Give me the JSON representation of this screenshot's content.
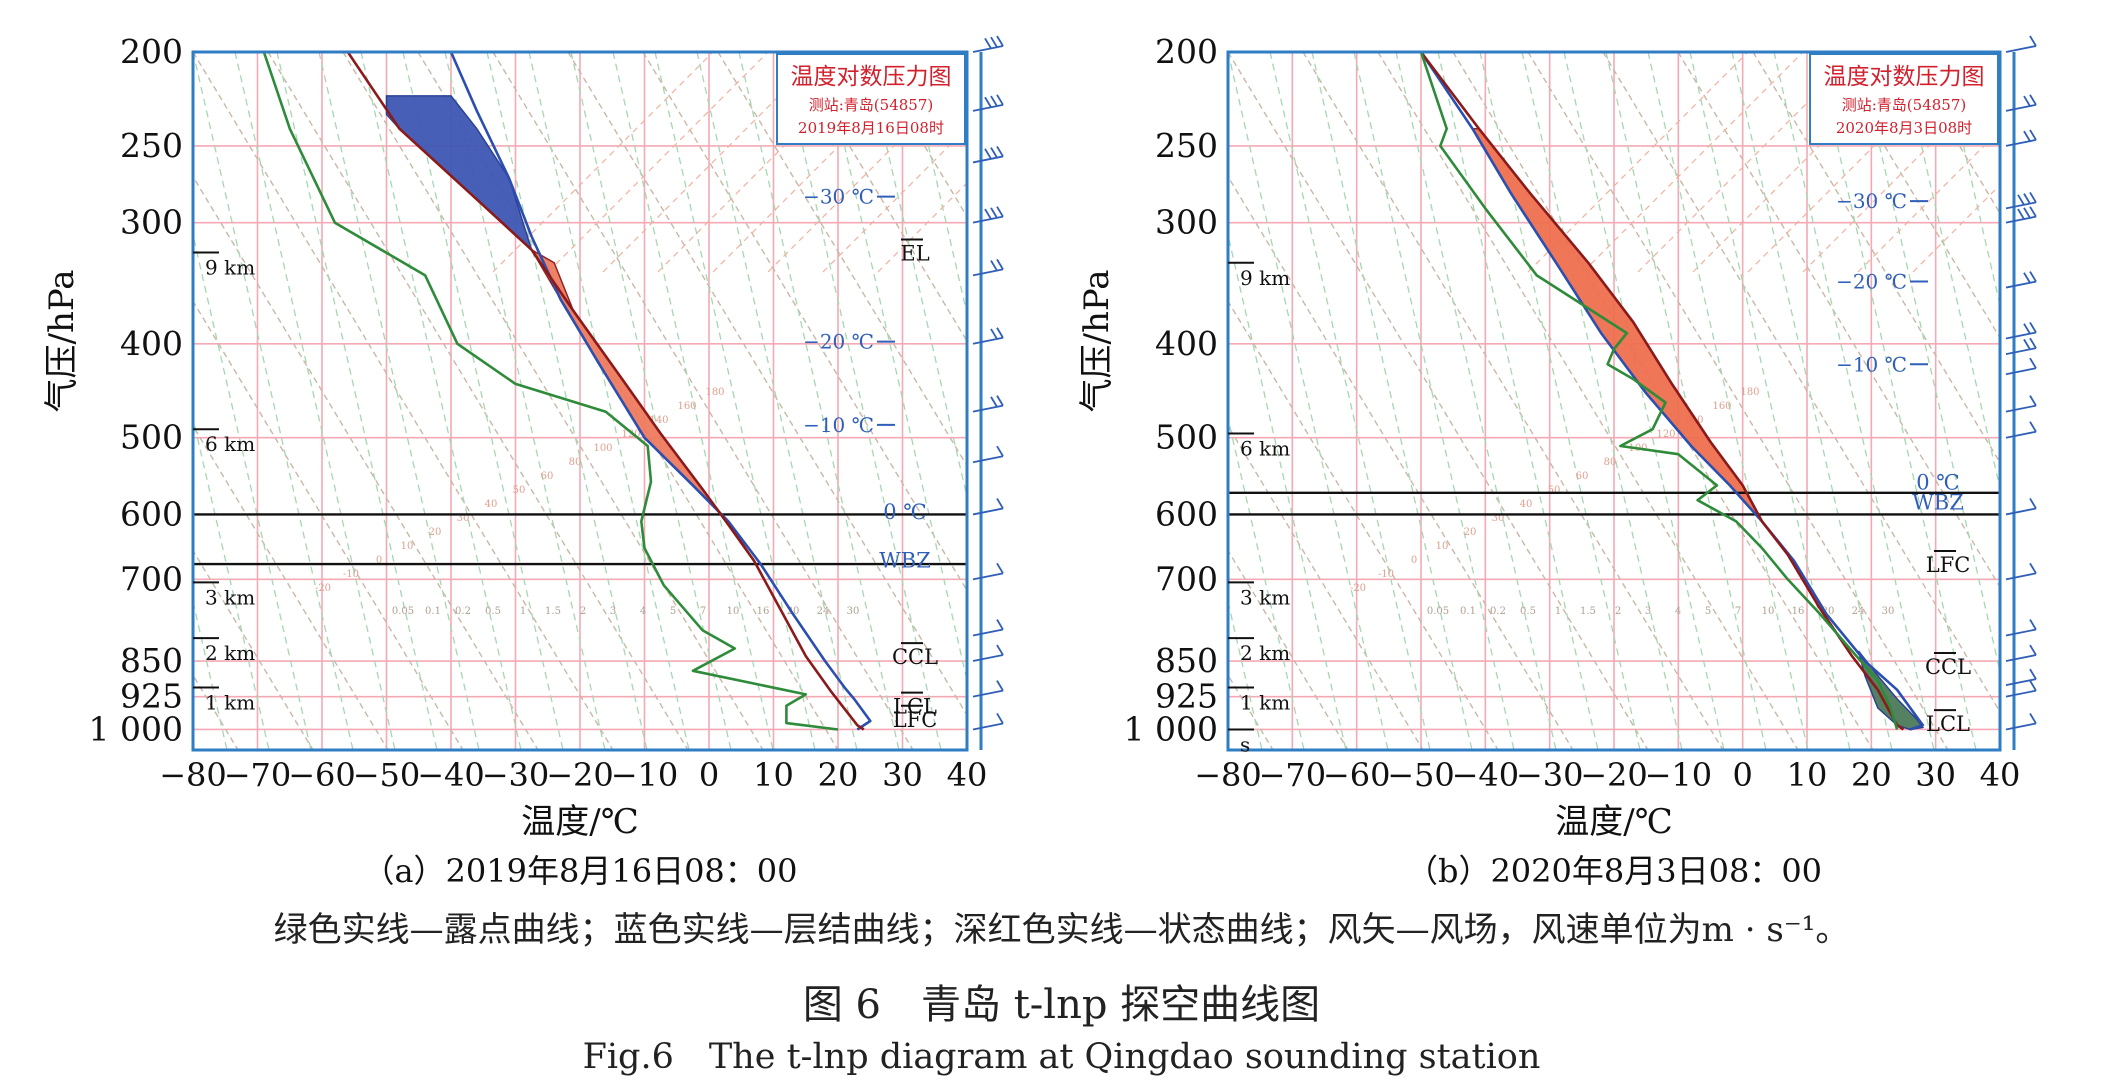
{
  "chart_data": [
    {
      "type": "line",
      "panel_label": "（a）2019年8月16日08：00",
      "inset_title": "温度对数压力图",
      "inset_station": "测站:青岛(54857)",
      "inset_time": "2019年8月16日08时",
      "xlabel": "温度/℃",
      "ylabel": "气压/hPa",
      "xlim": [
        -80,
        40
      ],
      "ylim": [
        1050,
        200
      ],
      "y_scale": "log",
      "x_ticks": [
        -80,
        -70,
        -60,
        -50,
        -40,
        -30,
        -20,
        -10,
        0,
        10,
        20,
        30,
        40
      ],
      "x_tick_labels": [
        "−80",
        "−70",
        "−60",
        "−50",
        "−40",
        "−30",
        "−20",
        "−10",
        "0",
        "10",
        "20",
        "30",
        "40"
      ],
      "y_ticks": [
        200,
        250,
        300,
        400,
        500,
        600,
        700,
        850,
        925,
        1000
      ],
      "y_tick_labels": [
        "200",
        "250",
        "300",
        "400",
        "500",
        "600",
        "700",
        "850",
        "925",
        "1 000"
      ],
      "height_marks": [
        {
          "p": 322,
          "label": "9 km"
        },
        {
          "p": 490,
          "label": "6 km"
        },
        {
          "p": 705,
          "label": "3 km"
        },
        {
          "p": 805,
          "label": "2 km"
        },
        {
          "p": 905,
          "label": "1 km"
        }
      ],
      "isotherm_labels": [
        {
          "p": 282,
          "label": "−30 ℃"
        },
        {
          "p": 398,
          "label": "−20 ℃"
        },
        {
          "p": 485,
          "label": "−10 ℃"
        }
      ],
      "level_labels": [
        {
          "p": 322,
          "label": "EL",
          "overline": true
        },
        {
          "p": 595,
          "label": "0 ℃",
          "overline": false
        },
        {
          "p": 668,
          "label": "WBZ",
          "overline": false
        },
        {
          "p": 840,
          "label": "CCL",
          "overline": true
        },
        {
          "p": 945,
          "label": "LCL",
          "overline": true
        },
        {
          "p": 975,
          "label": "LFC",
          "overline": true
        }
      ],
      "horizontal_lines": [
        600,
        675
      ],
      "series": [
        {
          "name": "层结曲线",
          "color": "#2b4fb0",
          "points": [
            [
              -40,
              200
            ],
            [
              -36,
              230
            ],
            [
              -31,
              270
            ],
            [
              -27.5,
              310
            ],
            [
              -23,
              360
            ],
            [
              -17,
              420
            ],
            [
              -10,
              500
            ],
            [
              -2.5,
              560
            ],
            [
              3,
              610
            ],
            [
              8,
              675
            ],
            [
              13,
              760
            ],
            [
              18,
              850
            ],
            [
              21,
              905
            ],
            [
              22.5,
              930
            ],
            [
              25,
              980
            ],
            [
              23,
              1000
            ]
          ]
        },
        {
          "name": "状态曲线",
          "color": "#8b1a1a",
          "points": [
            [
              -56,
              200
            ],
            [
              -48,
              240
            ],
            [
              -37,
              280
            ],
            [
              -27.5,
              320
            ],
            [
              -21,
              370
            ],
            [
              -14,
              430
            ],
            [
              -7.5,
              495
            ],
            [
              -1,
              565
            ],
            [
              3,
              615
            ],
            [
              7,
              670
            ],
            [
              11,
              750
            ],
            [
              15,
              840
            ],
            [
              19,
              915
            ],
            [
              23,
              990
            ],
            [
              24,
              1000
            ]
          ]
        },
        {
          "name": "露点曲线",
          "color": "#2e8b3a",
          "points": [
            [
              -69,
              200
            ],
            [
              -65,
              240
            ],
            [
              -58,
              300
            ],
            [
              -44,
              340
            ],
            [
              -39,
              400
            ],
            [
              -30,
              440
            ],
            [
              -16,
              470
            ],
            [
              -9.5,
              510
            ],
            [
              -9,
              555
            ],
            [
              -10.5,
              610
            ],
            [
              -10,
              650
            ],
            [
              -7,
              710
            ],
            [
              -1,
              790
            ],
            [
              4,
              825
            ],
            [
              -2.5,
              870
            ],
            [
              15,
              920
            ],
            [
              12,
              945
            ],
            [
              12,
              985
            ],
            [
              20,
              1000
            ]
          ]
        }
      ],
      "cape_area": [
        [
          -24,
          330
        ],
        [
          -21,
          370
        ],
        [
          -14,
          430
        ],
        [
          -7.5,
          495
        ],
        [
          -1,
          565
        ],
        [
          3,
          615
        ],
        [
          7,
          670
        ],
        [
          3,
          610
        ],
        [
          -2.5,
          560
        ],
        [
          -10,
          500
        ],
        [
          -17,
          420
        ],
        [
          -23,
          360
        ],
        [
          -27.5,
          320
        ]
      ],
      "cin_area": [
        [
          -50,
          222
        ],
        [
          -40,
          222
        ],
        [
          -36,
          240
        ],
        [
          -31,
          270
        ],
        [
          -27.5,
          320
        ],
        [
          -37,
          280
        ],
        [
          -48,
          240
        ],
        [
          -50,
          232
        ]
      ],
      "cape_color": "#ef7b5e",
      "cin_color": "#3f57b4",
      "dry_adiabat_labels": [
        "-20",
        "-10",
        "0",
        "10",
        "20",
        "30",
        "40",
        "50",
        "60",
        "80",
        "100",
        "120",
        "140",
        "160",
        "180"
      ],
      "mixing_ratio_labels": [
        "0.05",
        "0.1",
        "0.2",
        "0.5",
        "1",
        "1.5",
        "2",
        "3",
        "4",
        "5",
        "7",
        "10",
        "16",
        "20",
        "24",
        "30"
      ],
      "wind_barbs": [
        {
          "p": 200,
          "dir": 270,
          "spd": 22
        },
        {
          "p": 230,
          "dir": 275,
          "spd": 24
        },
        {
          "p": 260,
          "dir": 270,
          "spd": 26
        },
        {
          "p": 300,
          "dir": 270,
          "spd": 20
        },
        {
          "p": 340,
          "dir": 265,
          "spd": 18
        },
        {
          "p": 400,
          "dir": 260,
          "spd": 14
        },
        {
          "p": 470,
          "dir": 255,
          "spd": 12
        },
        {
          "p": 530,
          "dir": 250,
          "spd": 10
        },
        {
          "p": 600,
          "dir": 240,
          "spd": 8
        },
        {
          "p": 700,
          "dir": 235,
          "spd": 8
        },
        {
          "p": 800,
          "dir": 230,
          "spd": 6
        },
        {
          "p": 850,
          "dir": 225,
          "spd": 6
        },
        {
          "p": 925,
          "dir": 220,
          "spd": 4
        },
        {
          "p": 1000,
          "dir": 200,
          "spd": 4
        }
      ]
    },
    {
      "type": "line",
      "panel_label": "（b）2020年8月3日08：00",
      "inset_title": "温度对数压力图",
      "inset_station": "测站:青岛(54857)",
      "inset_time": "2020年8月3日08时",
      "xlabel": "温度/℃",
      "ylabel": "气压/hPa",
      "xlim": [
        -80,
        40
      ],
      "ylim": [
        1050,
        200
      ],
      "y_scale": "log",
      "x_ticks": [
        -80,
        -70,
        -60,
        -50,
        -40,
        -30,
        -20,
        -10,
        0,
        10,
        20,
        30,
        40
      ],
      "x_tick_labels": [
        "−80",
        "−70",
        "−60",
        "−50",
        "−40",
        "−30",
        "−20",
        "−10",
        "0",
        "10",
        "20",
        "30",
        "40"
      ],
      "y_ticks": [
        200,
        250,
        300,
        400,
        500,
        600,
        700,
        850,
        925,
        1000
      ],
      "y_tick_labels": [
        "200",
        "250",
        "300",
        "400",
        "500",
        "600",
        "700",
        "850",
        "925",
        "1 000"
      ],
      "height_marks": [
        {
          "p": 330,
          "label": "9 km"
        },
        {
          "p": 495,
          "label": "6 km"
        },
        {
          "p": 705,
          "label": "3 km"
        },
        {
          "p": 805,
          "label": "2 km"
        },
        {
          "p": 905,
          "label": "1 km"
        },
        {
          "p": 1000,
          "label": "s"
        }
      ],
      "isotherm_labels": [
        {
          "p": 285,
          "label": "−30 ℃"
        },
        {
          "p": 345,
          "label": "−20 ℃"
        },
        {
          "p": 420,
          "label": "−10 ℃"
        }
      ],
      "level_labels": [
        {
          "p": 555,
          "label": "0 ℃",
          "overline": false
        },
        {
          "p": 582,
          "label": "WBZ",
          "overline": false
        },
        {
          "p": 675,
          "label": "LFC",
          "overline": true
        },
        {
          "p": 860,
          "label": "CCL",
          "overline": true
        },
        {
          "p": 985,
          "label": "LCL",
          "overline": true
        }
      ],
      "horizontal_lines": [
        570,
        600
      ],
      "series": [
        {
          "name": "层结曲线",
          "color": "#2b4fb0",
          "points": [
            [
              -50,
              200
            ],
            [
              -42,
              240
            ],
            [
              -36,
              280
            ],
            [
              -29,
              330
            ],
            [
              -22,
              390
            ],
            [
              -15,
              450
            ],
            [
              -8,
              510
            ],
            [
              -2,
              560
            ],
            [
              3,
              610
            ],
            [
              8,
              670
            ],
            [
              13,
              760
            ],
            [
              19,
              850
            ],
            [
              24,
              910
            ],
            [
              28,
              990
            ],
            [
              26,
              1000
            ]
          ]
        },
        {
          "name": "状态曲线",
          "color": "#8b1a1a",
          "points": [
            [
              -50,
              200
            ],
            [
              -41,
              240
            ],
            [
              -33,
              280
            ],
            [
              -24,
              330
            ],
            [
              -17,
              380
            ],
            [
              -11,
              440
            ],
            [
              -5,
              505
            ],
            [
              0,
              560
            ],
            [
              3,
              610
            ],
            [
              7,
              660
            ],
            [
              12,
              750
            ],
            [
              17,
              840
            ],
            [
              21,
              910
            ],
            [
              24,
              990
            ],
            [
              25,
              1000
            ]
          ]
        },
        {
          "name": "露点曲线",
          "color": "#2e8b3a",
          "points": [
            [
              -50,
              200
            ],
            [
              -46,
              240
            ],
            [
              -47,
              250
            ],
            [
              -40,
              290
            ],
            [
              -32,
              340
            ],
            [
              -18,
              390
            ],
            [
              -20,
              405
            ],
            [
              -21,
              420
            ],
            [
              -17,
              435
            ],
            [
              -12,
              460
            ],
            [
              -14,
              490
            ],
            [
              -19,
              510
            ],
            [
              -10,
              520
            ],
            [
              -4,
              560
            ],
            [
              -7,
              580
            ],
            [
              -1,
              610
            ],
            [
              3,
              650
            ],
            [
              7,
              700
            ],
            [
              12,
              760
            ],
            [
              17,
              830
            ],
            [
              21,
              890
            ],
            [
              23,
              950
            ],
            [
              24,
              1000
            ]
          ]
        }
      ],
      "cape_area": [
        [
          -41,
          240
        ],
        [
          -33,
          280
        ],
        [
          -24,
          330
        ],
        [
          -17,
          380
        ],
        [
          -11,
          440
        ],
        [
          -5,
          505
        ],
        [
          0,
          560
        ],
        [
          3,
          610
        ],
        [
          -2,
          560
        ],
        [
          -8,
          510
        ],
        [
          -15,
          450
        ],
        [
          -22,
          390
        ],
        [
          -29,
          330
        ],
        [
          -36,
          280
        ],
        [
          -42,
          240
        ]
      ],
      "cin_area": [
        [
          18,
          830
        ],
        [
          21,
          880
        ],
        [
          24,
          930
        ],
        [
          27,
          975
        ],
        [
          28,
          995
        ],
        [
          26,
          1000
        ],
        [
          24,
          990
        ],
        [
          21,
          950
        ],
        [
          19,
          880
        ]
      ],
      "cape_color": "#ef6f4f",
      "cin_color": "#4e7a5a",
      "dry_adiabat_labels": [
        "-20",
        "-10",
        "0",
        "10",
        "20",
        "30",
        "40",
        "50",
        "60",
        "80",
        "100",
        "120",
        "140",
        "160",
        "180"
      ],
      "mixing_ratio_labels": [
        "0.05",
        "0.1",
        "0.2",
        "0.5",
        "1",
        "1.5",
        "2",
        "3",
        "4",
        "5",
        "7",
        "10",
        "16",
        "20",
        "24",
        "30"
      ],
      "wind_barbs": [
        {
          "p": 200,
          "dir": 270,
          "spd": 10
        },
        {
          "p": 230,
          "dir": 275,
          "spd": 12
        },
        {
          "p": 250,
          "dir": 270,
          "spd": 14
        },
        {
          "p": 290,
          "dir": 280,
          "spd": 20
        },
        {
          "p": 300,
          "dir": 285,
          "spd": 22
        },
        {
          "p": 350,
          "dir": 280,
          "spd": 14
        },
        {
          "p": 395,
          "dir": 270,
          "spd": 12
        },
        {
          "p": 410,
          "dir": 270,
          "spd": 12
        },
        {
          "p": 430,
          "dir": 260,
          "spd": 10
        },
        {
          "p": 470,
          "dir": 255,
          "spd": 10
        },
        {
          "p": 500,
          "dir": 250,
          "spd": 8
        },
        {
          "p": 600,
          "dir": 240,
          "spd": 8
        },
        {
          "p": 700,
          "dir": 230,
          "spd": 8
        },
        {
          "p": 800,
          "dir": 220,
          "spd": 6
        },
        {
          "p": 850,
          "dir": 215,
          "spd": 6
        },
        {
          "p": 900,
          "dir": 210,
          "spd": 6
        },
        {
          "p": 925,
          "dir": 200,
          "spd": 4
        },
        {
          "p": 1000,
          "dir": 180,
          "spd": 4
        }
      ]
    }
  ],
  "caption": {
    "legend": "绿色实线—露点曲线；蓝色实线—层结曲线；深红色实线—状态曲线；风矢—风场，风速单位为m · s⁻¹。",
    "title": "图 6　青岛 t-lnp 探空曲线图",
    "title_en": "Fig.6　The t-lnp diagram at Qingdao sounding station"
  }
}
